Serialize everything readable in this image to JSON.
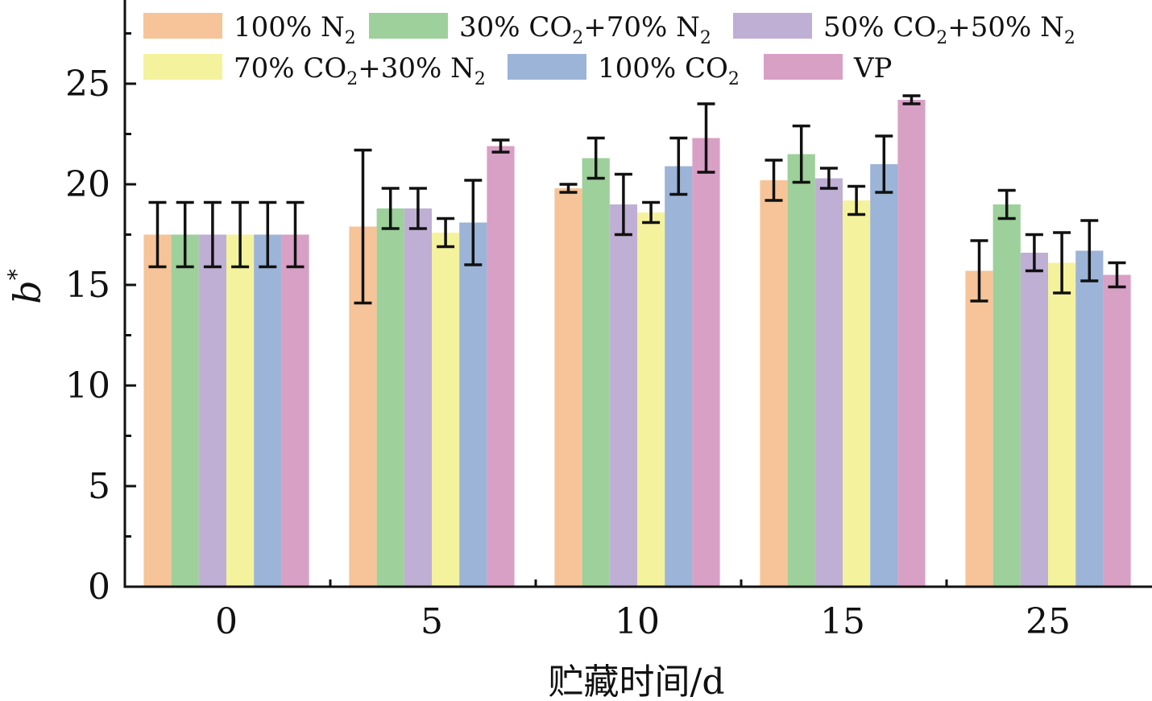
{
  "chart_data": {
    "type": "bar",
    "categories": [
      "0",
      "5",
      "10",
      "15",
      "25"
    ],
    "xlabel": "贮藏时间/d",
    "ylabel": "b",
    "ylabel_superscript": "*",
    "ylim": [
      0,
      29
    ],
    "yticks": [
      "0",
      "5",
      "10",
      "15",
      "20",
      "25"
    ],
    "grid": false,
    "legend_position": "top",
    "series": [
      {
        "label": "100% N",
        "sub": "2",
        "tail": "",
        "color": "#f6c498",
        "values": [
          17.5,
          17.9,
          19.8,
          20.2,
          15.7
        ],
        "errors": [
          1.6,
          3.8,
          0.2,
          1.0,
          1.5
        ]
      },
      {
        "label": "30% CO",
        "sub": "2",
        "tail": "+70% N",
        "sub2": "2",
        "color": "#9dd09a",
        "values": [
          17.5,
          18.8,
          21.3,
          21.5,
          19.0
        ],
        "errors": [
          1.6,
          1.0,
          1.0,
          1.4,
          0.7
        ]
      },
      {
        "label": "50% CO",
        "sub": "2",
        "tail": "+50% N",
        "sub2": "2",
        "color": "#c0afd4",
        "values": [
          17.5,
          18.8,
          19.0,
          20.3,
          16.6
        ],
        "errors": [
          1.6,
          1.0,
          1.5,
          0.5,
          0.9
        ]
      },
      {
        "label": "70% CO",
        "sub": "2",
        "tail": "+30% N",
        "sub2": "2",
        "color": "#f5f29e",
        "values": [
          17.5,
          17.6,
          18.6,
          19.2,
          16.1
        ],
        "errors": [
          1.6,
          0.7,
          0.5,
          0.7,
          1.5
        ]
      },
      {
        "label": "100% CO",
        "sub": "2",
        "tail": "",
        "color": "#9cb4d7",
        "values": [
          17.5,
          18.1,
          20.9,
          21.0,
          16.7
        ],
        "errors": [
          1.6,
          2.1,
          1.4,
          1.4,
          1.5
        ]
      },
      {
        "label": "VP",
        "sub": "",
        "tail": "",
        "color": "#d9a0c6",
        "values": [
          17.5,
          21.9,
          22.3,
          24.2,
          15.5
        ],
        "errors": [
          1.6,
          0.3,
          1.7,
          0.2,
          0.6
        ]
      }
    ]
  }
}
